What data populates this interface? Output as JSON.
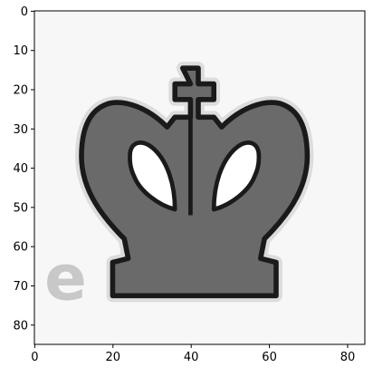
{
  "figure": {
    "colors": {
      "background": "#ffffff",
      "axes_face": "#f7f7f7",
      "piece_fill": "#6a6a6a",
      "piece_outline": "#1a1a1a",
      "piece_edge_highlight": "#dcdcdc",
      "watermark": "#c8c8c8"
    },
    "icon": "chess-king-crown-icon",
    "watermark_glyph": "e",
    "x_ticks": [
      "0",
      "20",
      "40",
      "60",
      "80"
    ],
    "y_ticks": [
      "0",
      "10",
      "20",
      "30",
      "40",
      "50",
      "60",
      "70",
      "80"
    ]
  }
}
